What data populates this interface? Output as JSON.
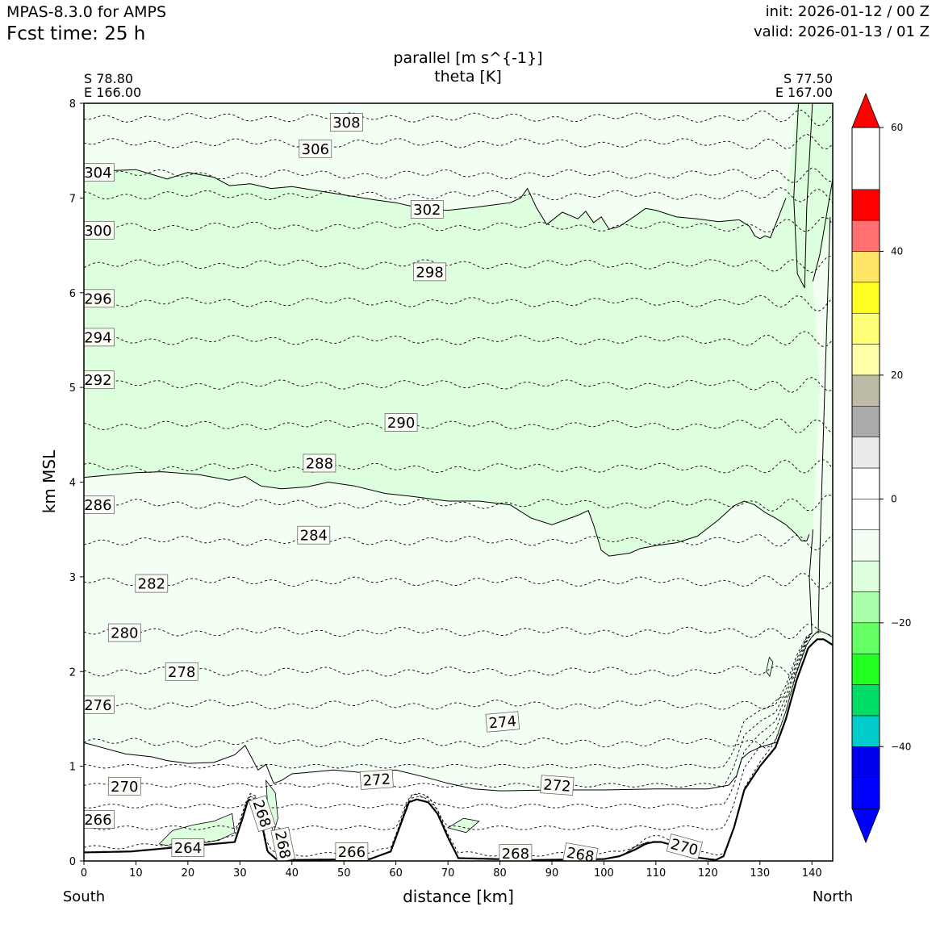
{
  "header": {
    "model": "MPAS-8.3.0 for AMPS",
    "fcst_time": "Fcst time:   25 h",
    "init": "init: 2026-01-12 / 00 Z",
    "valid": "valid: 2026-01-13 / 01 Z"
  },
  "chart_data": {
    "type": "cross-section",
    "title_line1": "parallel [m s^{-1}]",
    "title_line2": "theta [K]",
    "xlabel": "distance [km]",
    "ylabel": "km MSL",
    "xlim": [
      0,
      144
    ],
    "ylim": [
      0,
      8
    ],
    "x_ticks": [
      0,
      10,
      20,
      30,
      40,
      50,
      60,
      70,
      80,
      90,
      100,
      110,
      120,
      130,
      140
    ],
    "y_ticks": [
      0,
      1,
      2,
      3,
      4,
      5,
      6,
      7,
      8
    ],
    "left_point": {
      "lat": "S 78.80",
      "lon": "E 166.00"
    },
    "right_point": {
      "lat": "S 77.50",
      "lon": "E 167.00"
    },
    "left_end_label": "South",
    "right_end_label": "North",
    "colorbar": {
      "vmin": -50,
      "vmax": 60,
      "ticks": [
        -40,
        -20,
        0,
        20,
        40,
        60
      ],
      "tick_labels": [
        "−40",
        "−20",
        "0",
        "20",
        "40",
        "60"
      ],
      "bands": [
        {
          "from": -50,
          "to": -45,
          "color": "#0000ff"
        },
        {
          "from": -45,
          "to": -40,
          "color": "#0000ee"
        },
        {
          "from": -40,
          "to": -35,
          "color": "#00cccc"
        },
        {
          "from": -35,
          "to": -30,
          "color": "#00dd66"
        },
        {
          "from": -30,
          "to": -25,
          "color": "#22ff22"
        },
        {
          "from": -25,
          "to": -20,
          "color": "#66ff66"
        },
        {
          "from": -20,
          "to": -15,
          "color": "#aaffaa"
        },
        {
          "from": -15,
          "to": -10,
          "color": "#ddffdd"
        },
        {
          "from": -10,
          "to": -5,
          "color": "#f2fff2"
        },
        {
          "from": -5,
          "to": 0,
          "color": "#ffffff"
        },
        {
          "from": 0,
          "to": 5,
          "color": "#ffffff"
        },
        {
          "from": 5,
          "to": 10,
          "color": "#ebebeb"
        },
        {
          "from": 10,
          "to": 15,
          "color": "#aaaaaa"
        },
        {
          "from": 15,
          "to": 20,
          "color": "#bdbba6"
        },
        {
          "from": 20,
          "to": 25,
          "color": "#ffffaa"
        },
        {
          "from": 25,
          "to": 30,
          "color": "#ffff77"
        },
        {
          "from": 30,
          "to": 35,
          "color": "#ffff22"
        },
        {
          "from": 35,
          "to": 40,
          "color": "#ffe566"
        },
        {
          "from": 40,
          "to": 45,
          "color": "#ff7070"
        },
        {
          "from": 45,
          "to": 50,
          "color": "#ff0000"
        }
      ],
      "under_color": "#0000ff",
      "over_color": "#ff0000"
    },
    "fill_colors": {
      "outer": "#f2fff2",
      "band": "#ddffdd",
      "lowland": "#ffffff",
      "terrain": "#ffffff"
    },
    "terrain": {
      "x": [
        0,
        9,
        29,
        30.5,
        31.6,
        33,
        34,
        35.3,
        37,
        40,
        55,
        59,
        61,
        62.5,
        64,
        66.2,
        68,
        70,
        72,
        86.5,
        100,
        103,
        106,
        108,
        109.5,
        111,
        113,
        114.5,
        116,
        121.5,
        123,
        125,
        127,
        130,
        133,
        135,
        137,
        139.3,
        141,
        142.3,
        144
      ],
      "y": [
        0.09,
        0.1,
        0.2,
        0.45,
        0.65,
        0.62,
        0.45,
        0.1,
        0.02,
        0.01,
        0.02,
        0.1,
        0.4,
        0.62,
        0.65,
        0.62,
        0.5,
        0.25,
        0.03,
        0.01,
        0.02,
        0.05,
        0.12,
        0.18,
        0.2,
        0.2,
        0.17,
        0.12,
        0.05,
        0.01,
        0.05,
        0.35,
        0.75,
        1.0,
        1.2,
        1.5,
        1.9,
        2.25,
        2.34,
        2.34,
        2.28
      ]
    },
    "parallel_contours": [
      {
        "name": "upper-boundary",
        "x": [
          0,
          6,
          10,
          13,
          16,
          20,
          25,
          28,
          32,
          36,
          40,
          48,
          56,
          60,
          64,
          67,
          70,
          75,
          82,
          84,
          85.3,
          87,
          89,
          92,
          95,
          96.5,
          98,
          99.5,
          101,
          103,
          106,
          108,
          110,
          114,
          118,
          122,
          126,
          128,
          129,
          130,
          131,
          132,
          135
        ],
        "y": [
          7.27,
          7.29,
          7.3,
          7.25,
          7.2,
          7.27,
          7.22,
          7.13,
          7.15,
          7.1,
          7.12,
          7.05,
          6.98,
          6.95,
          6.9,
          6.88,
          6.87,
          6.9,
          6.95,
          7.0,
          7.1,
          6.9,
          6.72,
          6.85,
          6.78,
          6.86,
          6.74,
          6.8,
          6.67,
          6.7,
          6.81,
          6.89,
          6.87,
          6.8,
          6.78,
          6.75,
          6.77,
          6.7,
          6.6,
          6.57,
          6.6,
          6.58,
          7.0
        ]
      },
      {
        "name": "mid-boundary",
        "x": [
          0,
          10,
          15,
          22,
          28,
          31,
          34,
          38,
          43,
          47,
          52,
          58,
          63,
          70,
          76,
          82,
          86,
          90,
          95,
          97,
          98,
          99.5,
          101,
          105,
          107,
          110,
          114,
          118,
          122,
          125,
          127,
          129,
          131,
          133,
          135,
          137,
          138,
          139,
          139.5
        ],
        "y": [
          4.05,
          4.1,
          4.11,
          4.08,
          4.02,
          4.06,
          3.96,
          3.93,
          3.95,
          4.0,
          3.96,
          3.88,
          3.85,
          3.8,
          3.8,
          3.76,
          3.62,
          3.55,
          3.65,
          3.7,
          3.55,
          3.28,
          3.22,
          3.25,
          3.3,
          3.33,
          3.36,
          3.43,
          3.6,
          3.75,
          3.8,
          3.76,
          3.68,
          3.62,
          3.55,
          3.45,
          3.38,
          3.38,
          3.45
        ]
      },
      {
        "name": "lower-boundary",
        "x": [
          0,
          8,
          13,
          16,
          20,
          25,
          29,
          31,
          33.5,
          35,
          36.5,
          38,
          40,
          44,
          48,
          54,
          60,
          66,
          70,
          75,
          80,
          90,
          100,
          110,
          120,
          124,
          125.5,
          126.5,
          128,
          130,
          133,
          135
        ],
        "y": [
          1.25,
          1.13,
          1.1,
          1.06,
          1.03,
          1.04,
          1.12,
          1.22,
          0.96,
          1.02,
          0.82,
          0.85,
          0.92,
          0.94,
          0.96,
          0.93,
          0.96,
          0.88,
          0.82,
          0.76,
          0.74,
          0.75,
          0.75,
          0.76,
          0.76,
          0.8,
          0.9,
          1.08,
          1.15,
          1.2,
          1.25,
          1.28
        ]
      }
    ],
    "theta_levels": [
      264,
      266,
      268,
      270,
      272,
      274,
      276,
      278,
      280,
      282,
      284,
      286,
      288,
      290,
      292,
      294,
      296,
      298,
      300,
      302,
      304,
      306,
      308
    ],
    "theta_contour_heights_km": {
      "274": 1.25,
      "276": 1.65,
      "278": 2.0,
      "280": 2.42,
      "282": 2.95,
      "284": 3.38,
      "286": 3.77,
      "288": 4.15,
      "290": 4.6,
      "292": 5.03,
      "294": 5.5,
      "296": 5.9,
      "298": 6.3,
      "300": 6.7,
      "302": 7.03,
      "304": 7.25,
      "306": 7.58,
      "308": 7.85
    },
    "theta_labels": [
      {
        "text": "308",
        "x": 50.5,
        "y": 7.8,
        "rot": 0
      },
      {
        "text": "306",
        "x": 44.5,
        "y": 7.52,
        "rot": 0
      },
      {
        "text": "304",
        "x": 2.7,
        "y": 7.27,
        "rot": 0
      },
      {
        "text": "302",
        "x": 66,
        "y": 6.88,
        "rot": 0
      },
      {
        "text": "300",
        "x": 2.7,
        "y": 6.66,
        "rot": 0
      },
      {
        "text": "298",
        "x": 66.5,
        "y": 6.22,
        "rot": 0
      },
      {
        "text": "296",
        "x": 2.7,
        "y": 5.94,
        "rot": 0
      },
      {
        "text": "294",
        "x": 2.7,
        "y": 5.53,
        "rot": 0
      },
      {
        "text": "292",
        "x": 2.7,
        "y": 5.08,
        "rot": 0
      },
      {
        "text": "290",
        "x": 61,
        "y": 4.63,
        "rot": 0
      },
      {
        "text": "288",
        "x": 45.3,
        "y": 4.2,
        "rot": 0
      },
      {
        "text": "286",
        "x": 2.7,
        "y": 3.76,
        "rot": 0
      },
      {
        "text": "284",
        "x": 44.2,
        "y": 3.44,
        "rot": 0
      },
      {
        "text": "282",
        "x": 13,
        "y": 2.93,
        "rot": 0
      },
      {
        "text": "280",
        "x": 7.8,
        "y": 2.41,
        "rot": 0
      },
      {
        "text": "278",
        "x": 18.8,
        "y": 2.0,
        "rot": 0
      },
      {
        "text": "276",
        "x": 2.7,
        "y": 1.65,
        "rot": 0
      },
      {
        "text": "274",
        "x": 80.5,
        "y": 1.47,
        "rot": -5
      },
      {
        "text": "272",
        "x": 56.3,
        "y": 0.86,
        "rot": -4
      },
      {
        "text": "272",
        "x": 91,
        "y": 0.8,
        "rot": 4
      },
      {
        "text": "270",
        "x": 7.8,
        "y": 0.79,
        "rot": 0
      },
      {
        "text": "268",
        "x": 34.3,
        "y": 0.5,
        "rot": 72
      },
      {
        "text": "266",
        "x": 2.7,
        "y": 0.44,
        "rot": 0
      },
      {
        "text": "268",
        "x": 38.3,
        "y": 0.17,
        "rot": 78
      },
      {
        "text": "264",
        "x": 20,
        "y": 0.14,
        "rot": 0
      },
      {
        "text": "266",
        "x": 51.5,
        "y": 0.1,
        "rot": 0
      },
      {
        "text": "268",
        "x": 83,
        "y": 0.08,
        "rot": 0
      },
      {
        "text": "268",
        "x": 95.5,
        "y": 0.07,
        "rot": 10
      },
      {
        "text": "270",
        "x": 115.5,
        "y": 0.15,
        "rot": 15
      }
    ]
  }
}
